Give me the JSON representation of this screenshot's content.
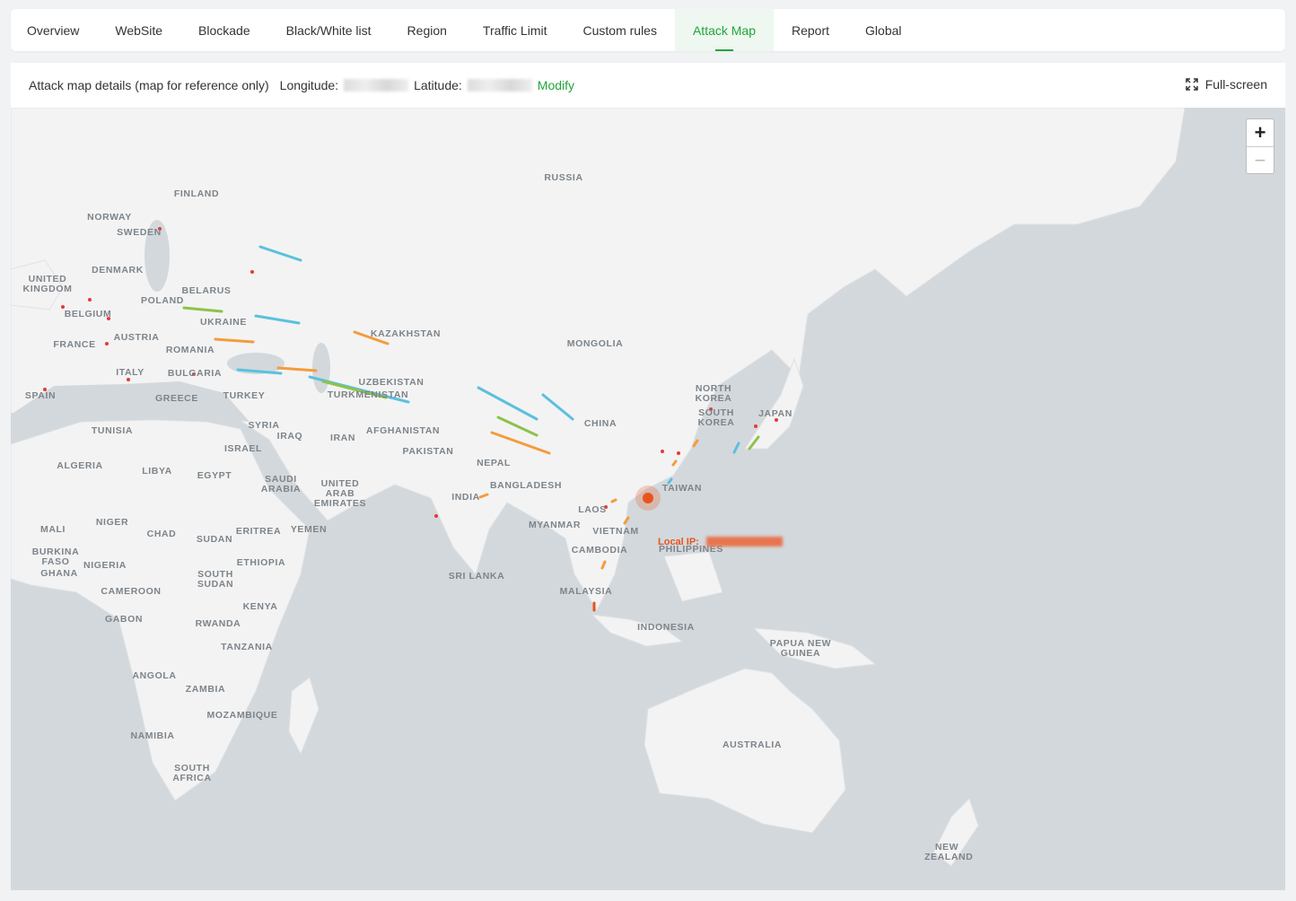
{
  "tabs": [
    "Overview",
    "WebSite",
    "Blockade",
    "Black/White list",
    "Region",
    "Traffic Limit",
    "Custom rules",
    "Attack Map",
    "Report",
    "Global"
  ],
  "toolbar": {
    "title": "Attack map details (map for reference only)",
    "longitude_label": "Longitude:",
    "latitude_label": "Latitude:",
    "modify": "Modify",
    "fullscreen": "Full-screen"
  },
  "zoom": {
    "in": "+",
    "out": "−"
  },
  "local_ip_label": "Local IP:",
  "map_labels": [
    "RUSSIA",
    "FINLAND",
    "NORWAY",
    "SWEDEN",
    "UNITED KINGDOM",
    "DENMARK",
    "BELARUS",
    "POLAND",
    "BELGIUM",
    "UKRAINE",
    "KAZAKHSTAN",
    "MONGOLIA",
    "FRANCE",
    "AUSTRIA",
    "ROMANIA",
    "ITALY",
    "BULGARIA",
    "UZBEKISTAN",
    "SPAIN",
    "GREECE",
    "TURKEY",
    "TURKMENISTAN",
    "NORTH KOREA",
    "CHINA",
    "SOUTH KOREA",
    "JAPAN",
    "SYRIA",
    "IRAQ",
    "TUNISIA",
    "IRAN",
    "AFGHANISTAN",
    "ISRAEL",
    "PAKISTAN",
    "ALGERIA",
    "LIBYA",
    "EGYPT",
    "SAUDI ARABIA",
    "NEPAL",
    "UNITED ARAB EMIRATES",
    "BANGLADESH",
    "INDIA",
    "TAIWAN",
    "LAOS",
    "MALI",
    "NIGER",
    "CHAD",
    "MYANMAR",
    "VIETNAM",
    "YEMEN",
    "ERITREA",
    "SUDAN",
    "PHILIPPINES",
    "BURKINA FASO",
    "CAMBODIA",
    "NIGERIA",
    "ETHIOPIA",
    "SOUTH SUDAN",
    "GHANA",
    "SRI LANKA",
    "CAMEROON",
    "MALAYSIA",
    "KENYA",
    "GABON",
    "RWANDA",
    "INDONESIA",
    "PAPUA NEW GUINEA",
    "TANZANIA",
    "ANGOLA",
    "ZAMBIA",
    "MOZAMBIQUE",
    "NAMIBIA",
    "AUSTRALIA",
    "SOUTH AFRICA",
    "NEW ZEALAND"
  ]
}
